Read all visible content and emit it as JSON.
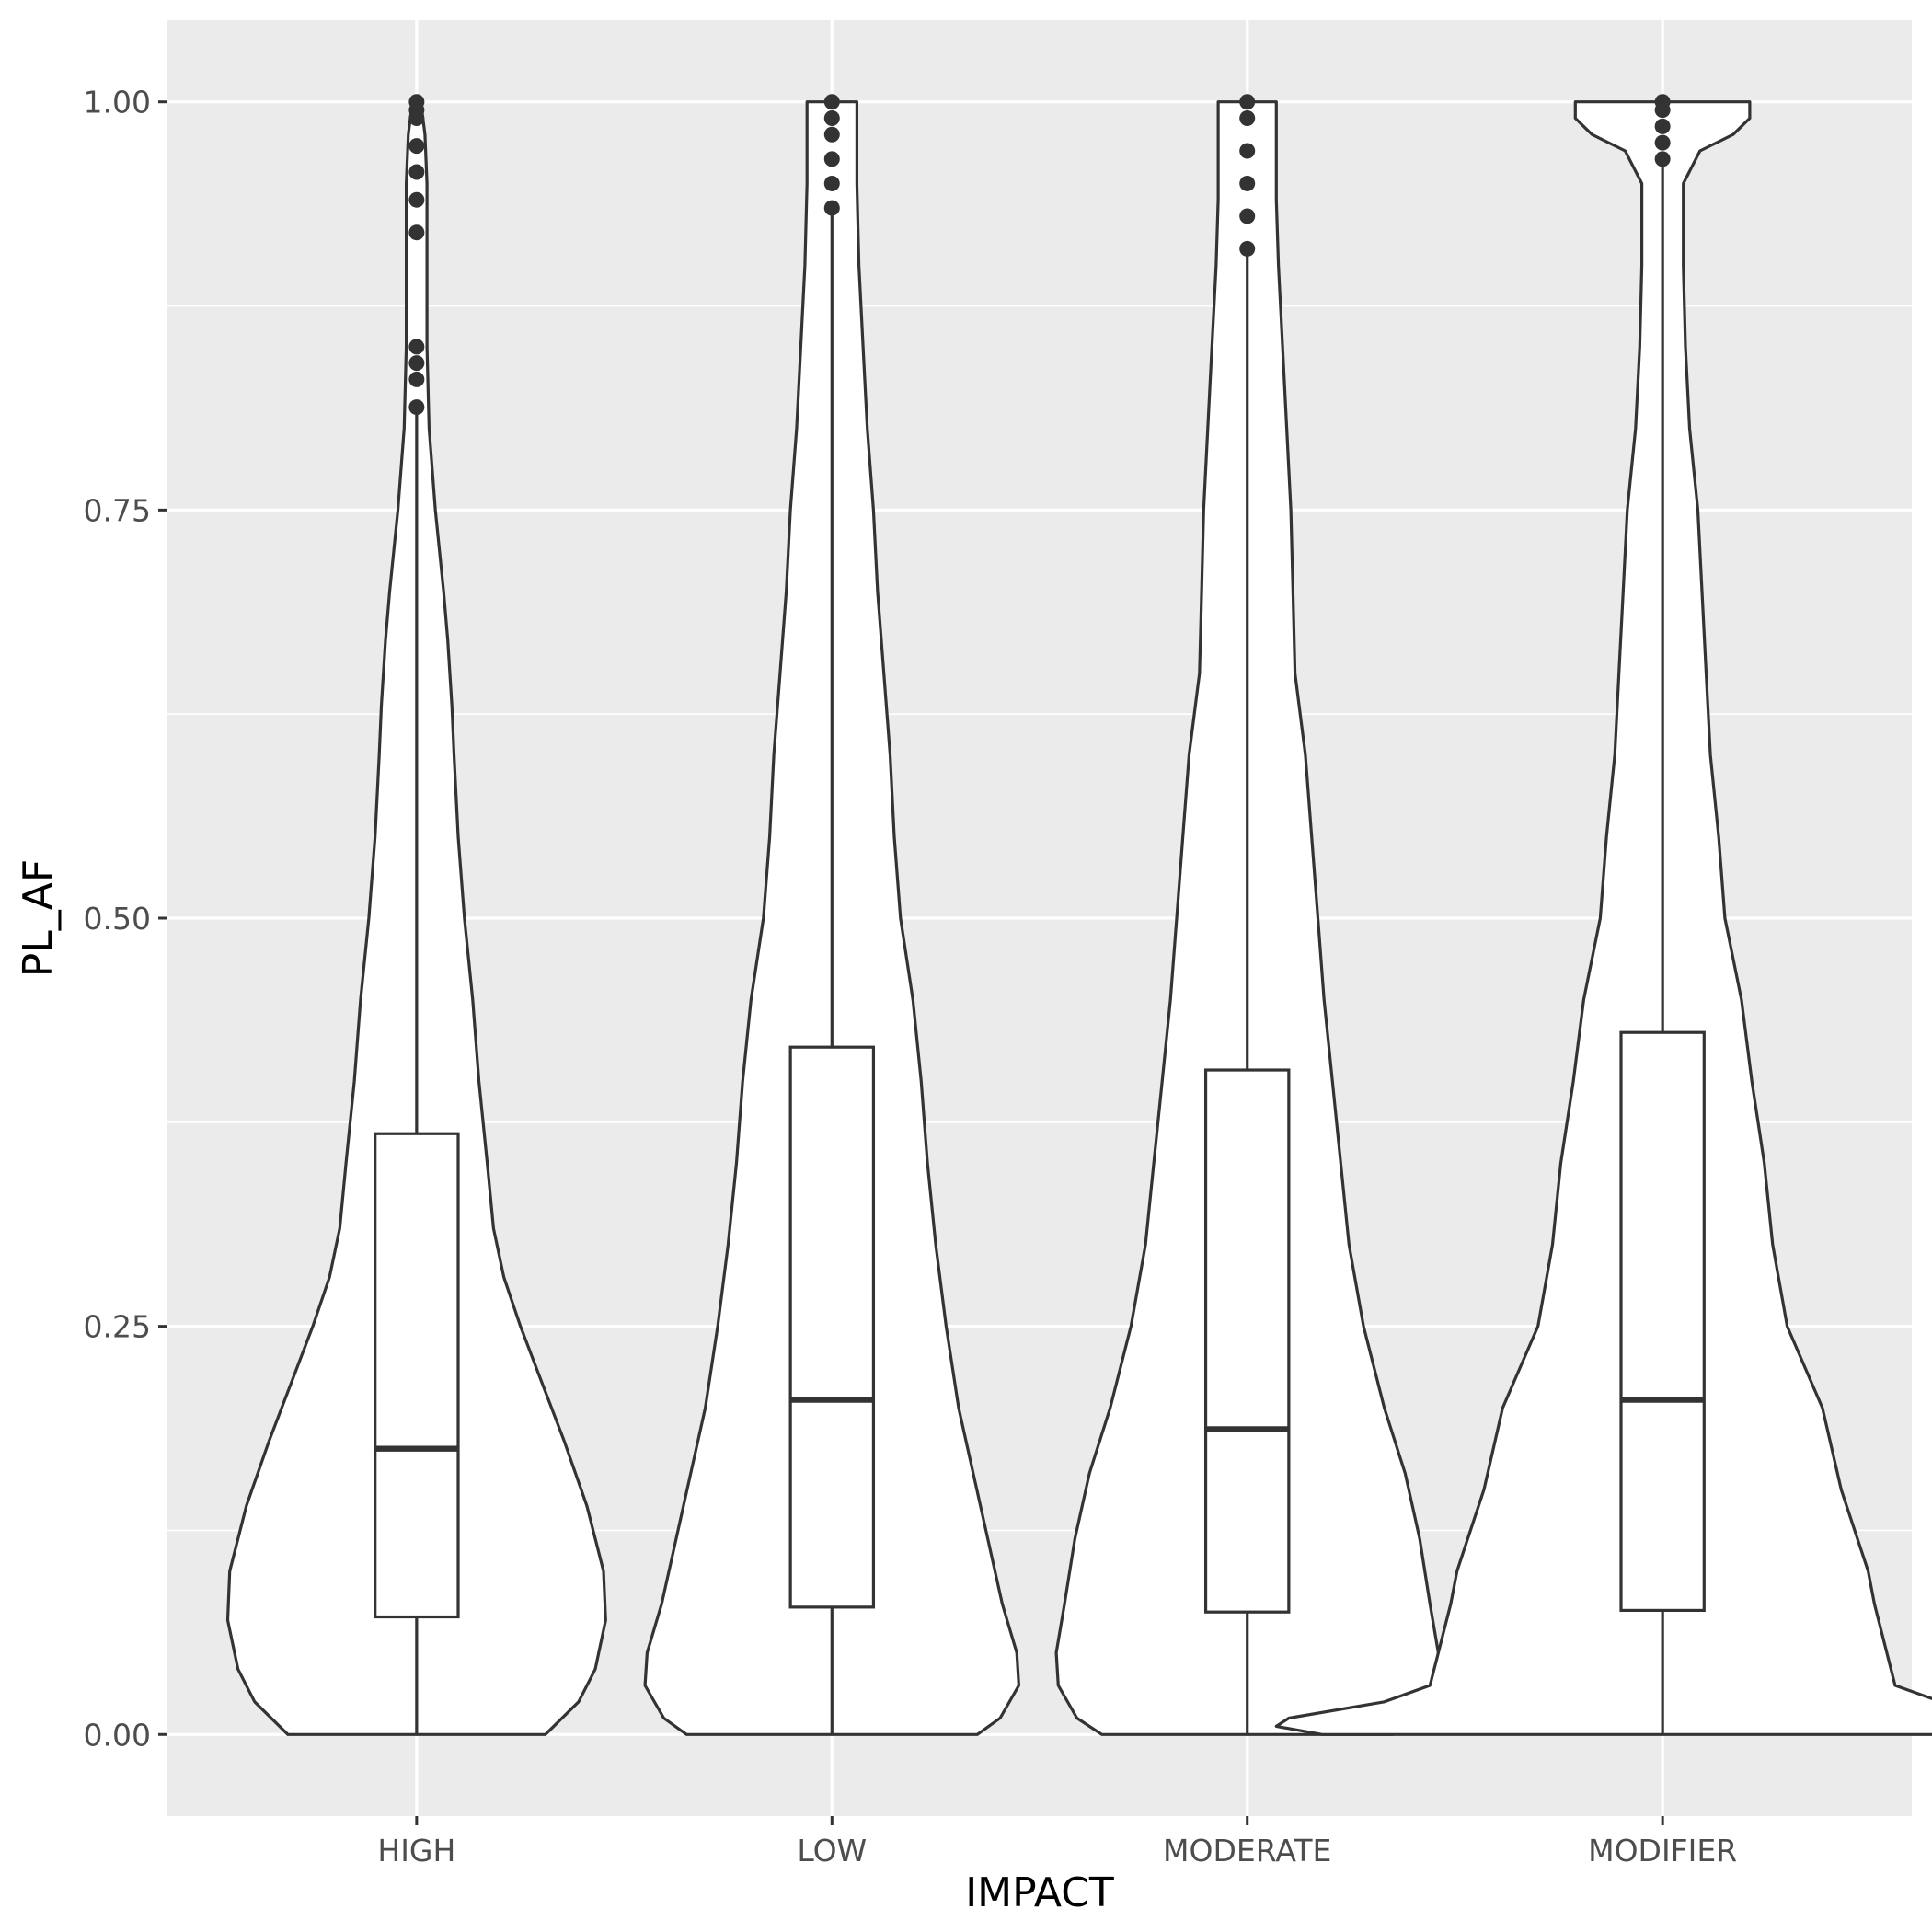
{
  "chart_data": {
    "type": "violin",
    "xlabel": "IMPACT",
    "ylabel": "PL_AF",
    "ylim": [
      -0.05,
      1.05
    ],
    "y_ticks": [
      0.0,
      0.25,
      0.5,
      0.75,
      1.0
    ],
    "y_tick_labels": [
      "0.00",
      "0.25",
      "0.50",
      "0.75",
      "1.00"
    ],
    "categories": [
      "HIGH",
      "LOW",
      "MODERATE",
      "MODIFIER"
    ],
    "grid": true,
    "legend": "none",
    "series": [
      {
        "category": "HIGH",
        "box": {
          "q1": 0.072,
          "median": 0.175,
          "q3": 0.368,
          "whisker_low": 0.0,
          "whisker_high": 0.81
        },
        "outliers": [
          0.813,
          0.83,
          0.84,
          0.85,
          0.92,
          0.94,
          0.957,
          0.973,
          0.99,
          0.995,
          1.0
        ],
        "violin_profile": [
          [
            0.0,
            0.62
          ],
          [
            0.02,
            0.78
          ],
          [
            0.04,
            0.86
          ],
          [
            0.07,
            0.91
          ],
          [
            0.1,
            0.9
          ],
          [
            0.14,
            0.82
          ],
          [
            0.18,
            0.71
          ],
          [
            0.22,
            0.59
          ],
          [
            0.25,
            0.5
          ],
          [
            0.28,
            0.42
          ],
          [
            0.31,
            0.37
          ],
          [
            0.35,
            0.34
          ],
          [
            0.4,
            0.3
          ],
          [
            0.45,
            0.27
          ],
          [
            0.5,
            0.23
          ],
          [
            0.55,
            0.2
          ],
          [
            0.6,
            0.18
          ],
          [
            0.63,
            0.17
          ],
          [
            0.67,
            0.15
          ],
          [
            0.7,
            0.13
          ],
          [
            0.75,
            0.09
          ],
          [
            0.8,
            0.06
          ],
          [
            0.85,
            0.05
          ],
          [
            0.9,
            0.05
          ],
          [
            0.95,
            0.05
          ],
          [
            0.98,
            0.04
          ],
          [
            1.0,
            0.02
          ]
        ]
      },
      {
        "category": "LOW",
        "box": {
          "q1": 0.078,
          "median": 0.205,
          "q3": 0.421,
          "whisker_low": 0.0,
          "whisker_high": 0.935
        },
        "outliers": [
          0.935,
          0.95,
          0.965,
          0.98,
          0.99,
          1.0
        ],
        "violin_profile": [
          [
            0.0,
            0.7
          ],
          [
            0.01,
            0.81
          ],
          [
            0.03,
            0.9
          ],
          [
            0.05,
            0.89
          ],
          [
            0.08,
            0.82
          ],
          [
            0.12,
            0.75
          ],
          [
            0.16,
            0.68
          ],
          [
            0.2,
            0.61
          ],
          [
            0.25,
            0.55
          ],
          [
            0.3,
            0.5
          ],
          [
            0.35,
            0.46
          ],
          [
            0.4,
            0.43
          ],
          [
            0.45,
            0.39
          ],
          [
            0.5,
            0.33
          ],
          [
            0.55,
            0.3
          ],
          [
            0.6,
            0.28
          ],
          [
            0.65,
            0.25
          ],
          [
            0.7,
            0.22
          ],
          [
            0.75,
            0.2
          ],
          [
            0.8,
            0.17
          ],
          [
            0.85,
            0.15
          ],
          [
            0.9,
            0.13
          ],
          [
            0.95,
            0.12
          ],
          [
            0.98,
            0.12
          ],
          [
            1.0,
            0.12
          ]
        ]
      },
      {
        "category": "MODERATE",
        "box": {
          "q1": 0.075,
          "median": 0.187,
          "q3": 0.407,
          "whisker_low": 0.0,
          "whisker_high": 0.91
        },
        "outliers": [
          0.91,
          0.93,
          0.95,
          0.97,
          0.99,
          1.0
        ],
        "violin_profile": [
          [
            0.0,
            0.7
          ],
          [
            0.01,
            0.82
          ],
          [
            0.03,
            0.91
          ],
          [
            0.05,
            0.92
          ],
          [
            0.08,
            0.88
          ],
          [
            0.12,
            0.83
          ],
          [
            0.16,
            0.76
          ],
          [
            0.2,
            0.66
          ],
          [
            0.25,
            0.56
          ],
          [
            0.3,
            0.49
          ],
          [
            0.35,
            0.45
          ],
          [
            0.4,
            0.41
          ],
          [
            0.45,
            0.37
          ],
          [
            0.5,
            0.34
          ],
          [
            0.55,
            0.31
          ],
          [
            0.6,
            0.28
          ],
          [
            0.65,
            0.23
          ],
          [
            0.7,
            0.22
          ],
          [
            0.75,
            0.21
          ],
          [
            0.8,
            0.19
          ],
          [
            0.85,
            0.17
          ],
          [
            0.9,
            0.15
          ],
          [
            0.94,
            0.14
          ],
          [
            0.97,
            0.14
          ],
          [
            1.0,
            0.14
          ]
        ]
      },
      {
        "category": "MODIFIER",
        "box": {
          "q1": 0.076,
          "median": 0.205,
          "q3": 0.43,
          "whisker_low": 0.0,
          "whisker_high": 0.965
        },
        "outliers": [
          0.965,
          0.975,
          0.985,
          0.995,
          1.0
        ],
        "violin_profile": [
          [
            0.0,
            1.64
          ],
          [
            0.005,
            1.86
          ],
          [
            0.01,
            1.8
          ],
          [
            0.02,
            1.34
          ],
          [
            0.03,
            1.12
          ],
          [
            0.05,
            1.08
          ],
          [
            0.08,
            1.02
          ],
          [
            0.1,
            0.99
          ],
          [
            0.15,
            0.86
          ],
          [
            0.2,
            0.77
          ],
          [
            0.25,
            0.6
          ],
          [
            0.3,
            0.53
          ],
          [
            0.35,
            0.49
          ],
          [
            0.4,
            0.43
          ],
          [
            0.45,
            0.38
          ],
          [
            0.5,
            0.3
          ],
          [
            0.55,
            0.27
          ],
          [
            0.6,
            0.23
          ],
          [
            0.65,
            0.21
          ],
          [
            0.7,
            0.19
          ],
          [
            0.75,
            0.17
          ],
          [
            0.8,
            0.13
          ],
          [
            0.85,
            0.11
          ],
          [
            0.9,
            0.1
          ],
          [
            0.95,
            0.1
          ],
          [
            0.97,
            0.18
          ],
          [
            0.98,
            0.34
          ],
          [
            0.99,
            0.42
          ],
          [
            1.0,
            0.42
          ]
        ]
      }
    ]
  }
}
